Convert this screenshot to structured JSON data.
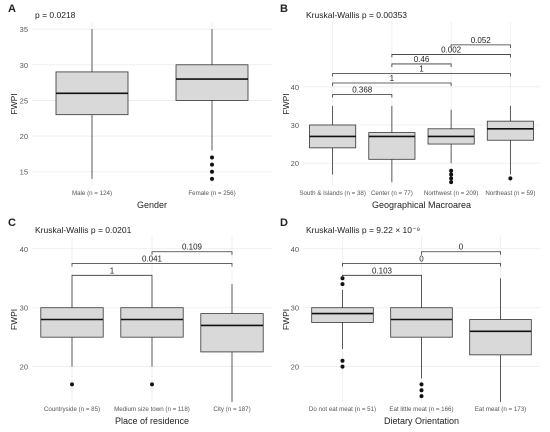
{
  "colors": {
    "box_fill": "#d9d9d9",
    "box_stroke": "#333333",
    "grid": "#ebebeb",
    "text": "#222222",
    "tick": "#555555",
    "outlier": "#111111"
  },
  "chart_data": [
    {
      "type": "box",
      "tag": "A",
      "pvalue_label": "p = 0.0218",
      "xlabel": "Gender",
      "ylabel": "FWPI",
      "ylim": [
        13,
        36
      ],
      "yticks": [
        15,
        20,
        25,
        30,
        35
      ],
      "categories": [
        "Male (n = 124)",
        "Female (n = 256)"
      ],
      "boxes": [
        {
          "min": 14,
          "q1": 23,
          "median": 26,
          "q3": 29,
          "max": 35,
          "outliers": []
        },
        {
          "min": 18,
          "q1": 25,
          "median": 28,
          "q3": 30,
          "max": 35,
          "outliers": [
            17,
            16,
            15,
            14
          ]
        }
      ],
      "comparisons": []
    },
    {
      "type": "box",
      "tag": "B",
      "pvalue_label": "Kruskal-Wallis p = 0.00353",
      "xlabel": "Geographical Macroarea",
      "ylabel": "FWPI",
      "ylim": [
        14,
        57
      ],
      "yticks": [
        20,
        30,
        40
      ],
      "categories": [
        "South & Islands (n = 38)",
        "Center (n = 77)",
        "Northwest (n = 209)",
        "Northeast (n = 59)"
      ],
      "boxes": [
        {
          "min": 17,
          "q1": 24,
          "median": 27,
          "q3": 30,
          "max": 35,
          "outliers": []
        },
        {
          "min": 15,
          "q1": 21,
          "median": 27,
          "q3": 28,
          "max": 35,
          "outliers": []
        },
        {
          "min": 20,
          "q1": 25,
          "median": 27,
          "q3": 29,
          "max": 34,
          "outliers": [
            18,
            17,
            16,
            15
          ]
        },
        {
          "min": 17,
          "q1": 26,
          "median": 29,
          "q3": 31,
          "max": 35,
          "outliers": [
            16
          ]
        }
      ],
      "comparisons": [
        {
          "from": 0,
          "to": 1,
          "y": 38,
          "label": "0.368"
        },
        {
          "from": 0,
          "to": 2,
          "y": 41,
          "label": "1"
        },
        {
          "from": 0,
          "to": 3,
          "y": 43.5,
          "label": "1"
        },
        {
          "from": 1,
          "to": 2,
          "y": 46,
          "label": "0.46"
        },
        {
          "from": 1,
          "to": 3,
          "y": 48.5,
          "label": "0.002"
        },
        {
          "from": 2,
          "to": 3,
          "y": 51,
          "label": "0.052"
        }
      ]
    },
    {
      "type": "box",
      "tag": "C",
      "pvalue_label": "Kruskal-Wallis p = 0.0201",
      "xlabel": "Place of residence",
      "ylabel": "FWPI",
      "ylim": [
        14,
        42
      ],
      "yticks": [
        20,
        30,
        40
      ],
      "categories": [
        "Countryside (n = 85)",
        "Medium size town (n = 118)",
        "City (n = 187)"
      ],
      "boxes": [
        {
          "min": 20,
          "q1": 25,
          "median": 28,
          "q3": 30,
          "max": 35,
          "outliers": [
            17
          ]
        },
        {
          "min": 20,
          "q1": 25,
          "median": 28,
          "q3": 30,
          "max": 35,
          "outliers": [
            17
          ]
        },
        {
          "min": 14,
          "q1": 22.5,
          "median": 27,
          "q3": 29,
          "max": 34,
          "outliers": []
        }
      ],
      "comparisons": [
        {
          "from": 0,
          "to": 1,
          "y": 35.5,
          "label": "1"
        },
        {
          "from": 0,
          "to": 2,
          "y": 37.5,
          "label": "0.041"
        },
        {
          "from": 1,
          "to": 2,
          "y": 39.5,
          "label": "0.109"
        }
      ]
    },
    {
      "type": "box",
      "tag": "D",
      "pvalue_label": "Kruskal-Wallis p = 9.22 × 10⁻⁹",
      "xlabel": "Dietary Orientation",
      "ylabel": "FWPI",
      "ylim": [
        14,
        42
      ],
      "yticks": [
        20,
        30,
        40
      ],
      "categories": [
        "Do not eat meat (n = 51)",
        "Eat little meat (n = 166)",
        "Eat meat (n = 173)"
      ],
      "boxes": [
        {
          "min": 23,
          "q1": 27.5,
          "median": 29,
          "q3": 30,
          "max": 33,
          "outliers": [
            35,
            34,
            21,
            20
          ]
        },
        {
          "min": 18,
          "q1": 25,
          "median": 28,
          "q3": 30,
          "max": 35,
          "outliers": [
            17,
            16,
            15
          ]
        },
        {
          "min": 14,
          "q1": 22,
          "median": 26,
          "q3": 28,
          "max": 35,
          "outliers": []
        }
      ],
      "comparisons": [
        {
          "from": 0,
          "to": 1,
          "y": 35.5,
          "label": "0.103"
        },
        {
          "from": 0,
          "to": 2,
          "y": 37.5,
          "label": "0"
        },
        {
          "from": 1,
          "to": 2,
          "y": 39.5,
          "label": "0"
        }
      ]
    }
  ]
}
